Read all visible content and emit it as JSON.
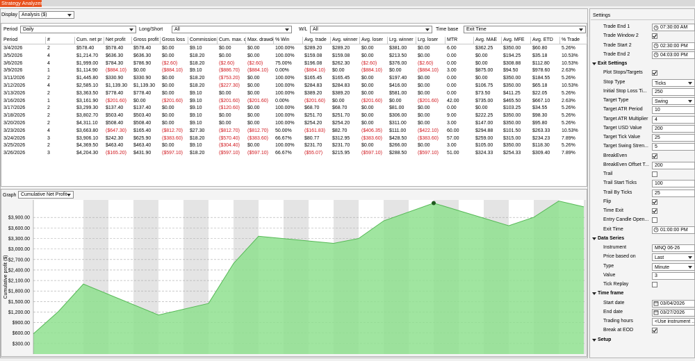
{
  "window": {
    "title": "Strategy Analyzer"
  },
  "display": {
    "label": "Display",
    "value": "Analysis ($)"
  },
  "filters": [
    {
      "label": "Period",
      "value": "Daily"
    },
    {
      "label": "Long/Short",
      "value": "All"
    },
    {
      "label": "W/L",
      "value": "All"
    },
    {
      "label": "Time base",
      "value": "Exit Time"
    }
  ],
  "table": {
    "columns": [
      "Period",
      "#",
      "Cum. net pr",
      "Net profit",
      "Gross profit",
      "Gross loss",
      "Commission",
      "Cum. max. c",
      "Max. drawdo",
      "% Win",
      "Avg. trade",
      "Avg. winner",
      "Avg. loser",
      "Lrg. winner",
      "Lrg. loser",
      "MTR",
      "Avg. MAE",
      "Avg. MFE",
      "Avg. ETD",
      "% Trade"
    ],
    "rows": [
      [
        "3/4/2026",
        "2",
        "$578.40",
        "$578.40",
        "$578.40",
        "$0.00",
        "$9.10",
        "$0.00",
        "$0.00",
        "100.00%",
        "$289.20",
        "$289.20",
        "$0.00",
        "$381.00",
        "$0.00",
        "6.00",
        "$362.25",
        "$350.00",
        "$60.80",
        "5.26%"
      ],
      [
        "3/5/2026",
        "4",
        "$1,214.70",
        "$636.30",
        "$636.30",
        "$0.00",
        "$18.20",
        "$0.00",
        "$0.00",
        "100.00%",
        "$159.08",
        "$159.08",
        "$0.00",
        "$213.50",
        "$0.00",
        "0.00",
        "$0.00",
        "$194.25",
        "$35.18",
        "10.53%"
      ],
      [
        "3/6/2026",
        "4",
        "$1,999.00",
        "$784.30",
        "$786.90",
        "($2.60)",
        "$18.20",
        "($2.60)",
        "($2.60)",
        "75.00%",
        "$196.08",
        "$262.30",
        "($2.60)",
        "$376.00",
        "($2.60)",
        "0.00",
        "$0.00",
        "$308.88",
        "$112.80",
        "10.53%"
      ],
      [
        "3/9/2026",
        "1",
        "$1,114.90",
        "($884.10)",
        "$0.00",
        "($884.10)",
        "$9.10",
        "($886.70)",
        "($884.10)",
        "0.00%",
        "($884.10)",
        "$0.00",
        "($884.10)",
        "$0.00",
        "($884.10)",
        "3.00",
        "$875.00",
        "$94.50",
        "$978.60",
        "2.63%"
      ],
      [
        "3/11/2026",
        "2",
        "$1,445.80",
        "$330.90",
        "$330.90",
        "$0.00",
        "$18.20",
        "($753.20)",
        "$0.00",
        "100.00%",
        "$165.45",
        "$165.45",
        "$0.00",
        "$197.40",
        "$0.00",
        "0.00",
        "$0.00",
        "$350.00",
        "$184.55",
        "5.26%"
      ],
      [
        "3/12/2026",
        "4",
        "$2,585.10",
        "$1,139.30",
        "$1,139.30",
        "$0.00",
        "$18.20",
        "($227.30)",
        "$0.00",
        "100.00%",
        "$284.83",
        "$284.83",
        "$0.00",
        "$416.00",
        "$0.00",
        "0.00",
        "$106.75",
        "$350.00",
        "$65.18",
        "10.53%"
      ],
      [
        "3/13/2026",
        "2",
        "$3,363.50",
        "$778.40",
        "$778.40",
        "$0.00",
        "$9.10",
        "$0.00",
        "$0.00",
        "100.00%",
        "$389.20",
        "$389.20",
        "$0.00",
        "$581.00",
        "$0.00",
        "0.00",
        "$73.50",
        "$411.25",
        "$22.05",
        "5.26%"
      ],
      [
        "3/16/2026",
        "1",
        "$3,161.90",
        "($201.60)",
        "$0.00",
        "($201.60)",
        "$9.10",
        "($201.60)",
        "($201.60)",
        "0.00%",
        "($201.60)",
        "$0.00",
        "($201.60)",
        "$0.00",
        "($201.60)",
        "42.00",
        "$735.00",
        "$465.50",
        "$667.10",
        "2.63%"
      ],
      [
        "3/17/2026",
        "2",
        "$3,299.30",
        "$137.40",
        "$137.40",
        "$0.00",
        "$9.10",
        "($120.60)",
        "$0.00",
        "100.00%",
        "$68.70",
        "$68.70",
        "$0.00",
        "$81.00",
        "$0.00",
        "0.00",
        "$0.00",
        "$103.25",
        "$34.55",
        "5.26%"
      ],
      [
        "3/18/2026",
        "2",
        "$3,802.70",
        "$503.40",
        "$503.40",
        "$0.00",
        "$9.10",
        "$0.00",
        "$0.00",
        "100.00%",
        "$251.70",
        "$251.70",
        "$0.00",
        "$306.00",
        "$0.00",
        "9.00",
        "$222.25",
        "$350.00",
        "$98.30",
        "5.26%"
      ],
      [
        "3/20/2026",
        "2",
        "$4,311.10",
        "$508.40",
        "$508.40",
        "$0.00",
        "$9.10",
        "$0.00",
        "$0.00",
        "100.00%",
        "$254.20",
        "$254.20",
        "$0.00",
        "$311.00",
        "$0.00",
        "3.00",
        "$147.00",
        "$350.00",
        "$95.80",
        "5.26%"
      ],
      [
        "3/23/2026",
        "4",
        "$3,663.80",
        "($647.30)",
        "$165.40",
        "($812.70)",
        "$27.30",
        "($812.70)",
        "($812.70)",
        "50.00%",
        "($161.83)",
        "$82.70",
        "($406.35)",
        "$111.00",
        "($422.10)",
        "60.00",
        "$294.88",
        "$101.50",
        "$263.33",
        "10.53%"
      ],
      [
        "3/24/2026",
        "3",
        "$3,906.10",
        "$242.30",
        "$625.90",
        "($383.60)",
        "$18.20",
        "($570.40)",
        "($383.60)",
        "66.67%",
        "$80.77",
        "$312.95",
        "($383.60)",
        "$428.50",
        "($383.60)",
        "57.00",
        "$259.00",
        "$315.00",
        "$234.23",
        "7.89%"
      ],
      [
        "3/25/2026",
        "2",
        "$4,369.50",
        "$463.40",
        "$463.40",
        "$0.00",
        "$9.10",
        "($304.40)",
        "$0.00",
        "100.00%",
        "$231.70",
        "$231.70",
        "$0.00",
        "$266.00",
        "$0.00",
        "3.00",
        "$105.00",
        "$350.00",
        "$118.30",
        "5.26%"
      ],
      [
        "3/26/2026",
        "3",
        "$4,204.30",
        "($165.20)",
        "$431.90",
        "($597.10)",
        "$18.20",
        "($597.10)",
        "($597.10)",
        "66.67%",
        "($55.07)",
        "$215.95",
        "($597.10)",
        "$288.50",
        "($597.10)",
        "51.00",
        "$324.33",
        "$254.33",
        "$309.40",
        "7.89%"
      ]
    ]
  },
  "graph": {
    "label": "Graph",
    "value": "Cumulative Net Profit"
  },
  "chart_data": {
    "type": "area",
    "y_label": "Cumulative profit ($)",
    "x": [
      "3/4/2026",
      "3/5/2026",
      "3/6/2026",
      "3/9/2026",
      "3/11/2026",
      "3/12/2026",
      "3/13/2026",
      "3/16/2026",
      "3/17/2026",
      "3/18/2026",
      "3/20/2026",
      "3/23/2026",
      "3/24/2026",
      "3/25/2026",
      "3/26/2026"
    ],
    "values": [
      578.4,
      1214.7,
      1999.0,
      1114.9,
      1445.8,
      2585.1,
      3363.5,
      3161.9,
      3299.3,
      3802.7,
      4311.1,
      3663.8,
      3906.1,
      4369.5,
      4204.3
    ],
    "color": "#8fe08f",
    "line_color": "#56b956",
    "marker_index": 10,
    "marker_color": "#1f5a1f",
    "ylim": [
      0,
      4400
    ],
    "yticks": [
      {
        "value": 300,
        "label": "$300.00"
      },
      {
        "value": 600,
        "label": "$600.00"
      },
      {
        "value": 900,
        "label": "$900.00"
      },
      {
        "value": 1200,
        "label": "$1,200.00"
      },
      {
        "value": 1500,
        "label": "$1,500.00"
      },
      {
        "value": 1800,
        "label": "$1,800.00"
      },
      {
        "value": 2100,
        "label": "$2,100.00"
      },
      {
        "value": 2400,
        "label": "$2,400.00"
      },
      {
        "value": 2700,
        "label": "$2,700.00"
      },
      {
        "value": 3000,
        "label": "$3,000.00"
      },
      {
        "value": 3300,
        "label": "$3,300.00"
      },
      {
        "value": 3600,
        "label": "$3,600.00"
      },
      {
        "value": 3900,
        "label": "$3,900.00"
      }
    ],
    "grid": true
  },
  "settings": {
    "title": "Settings",
    "rows": [
      {
        "label": "Trade End 1",
        "value": "07:30:00 AM",
        "kind": "time"
      },
      {
        "label": "Trade Window 2",
        "kind": "checkbox",
        "checked": true
      },
      {
        "label": "Trade Start 2",
        "value": "02:30:00 PM",
        "kind": "time"
      },
      {
        "label": "Trade End 2",
        "value": "04:03:00 PM",
        "kind": "time"
      },
      {
        "section": "Exit Settings"
      },
      {
        "label": "Plot Stops/Targets",
        "kind": "checkbox",
        "checked": true
      },
      {
        "label": "Stop Type",
        "value": "Ticks",
        "kind": "dropdown"
      },
      {
        "label": "Initial Stop Loss Ti...",
        "value": "250",
        "kind": "text"
      },
      {
        "label": "Target Type",
        "value": "Swing",
        "kind": "dropdown"
      },
      {
        "label": "Target ATR Period",
        "value": "10",
        "kind": "text"
      },
      {
        "label": "Target ATR Multiplier",
        "value": "4",
        "kind": "text"
      },
      {
        "label": "Target USD Value",
        "value": "200",
        "kind": "text"
      },
      {
        "label": "Target Tick Value",
        "value": "25",
        "kind": "text"
      },
      {
        "label": "Target Swing Stren...",
        "value": "5",
        "kind": "text"
      },
      {
        "label": "BreakEven",
        "kind": "checkbox",
        "checked": true
      },
      {
        "label": "BreakEven Offset T...",
        "value": "200",
        "kind": "text"
      },
      {
        "label": "Trail",
        "kind": "checkbox",
        "checked": false
      },
      {
        "label": "Trail Start Ticks",
        "value": "100",
        "kind": "text"
      },
      {
        "label": "Trail By Ticks",
        "value": "25",
        "kind": "text"
      },
      {
        "label": "Flip",
        "kind": "checkbox",
        "checked": true
      },
      {
        "label": "Time Exit",
        "kind": "checkbox",
        "checked": true
      },
      {
        "label": "Entry Candle Open...",
        "kind": "checkbox",
        "checked": false
      },
      {
        "label": "Exit Time",
        "value": "01:00:00 PM",
        "kind": "time"
      },
      {
        "section": "Data Series"
      },
      {
        "label": "Instrument",
        "value": "MNQ 06-26",
        "kind": "text"
      },
      {
        "label": "Price based on",
        "value": "Last",
        "kind": "dropdown"
      },
      {
        "label": "Type",
        "value": "Minute",
        "kind": "dropdown"
      },
      {
        "label": "Value",
        "value": "3",
        "kind": "text"
      },
      {
        "label": "Tick Replay",
        "kind": "checkbox",
        "checked": false
      },
      {
        "section": "Time frame"
      },
      {
        "label": "Start date",
        "value": "03/04/2026",
        "kind": "date"
      },
      {
        "label": "End date",
        "value": "03/27/2026",
        "kind": "date"
      },
      {
        "label": "Trading hours",
        "value": "<Use instrument ...",
        "kind": "text"
      },
      {
        "label": "Break at EOD",
        "kind": "checkbox",
        "checked": true
      },
      {
        "section": "Setup"
      }
    ]
  }
}
